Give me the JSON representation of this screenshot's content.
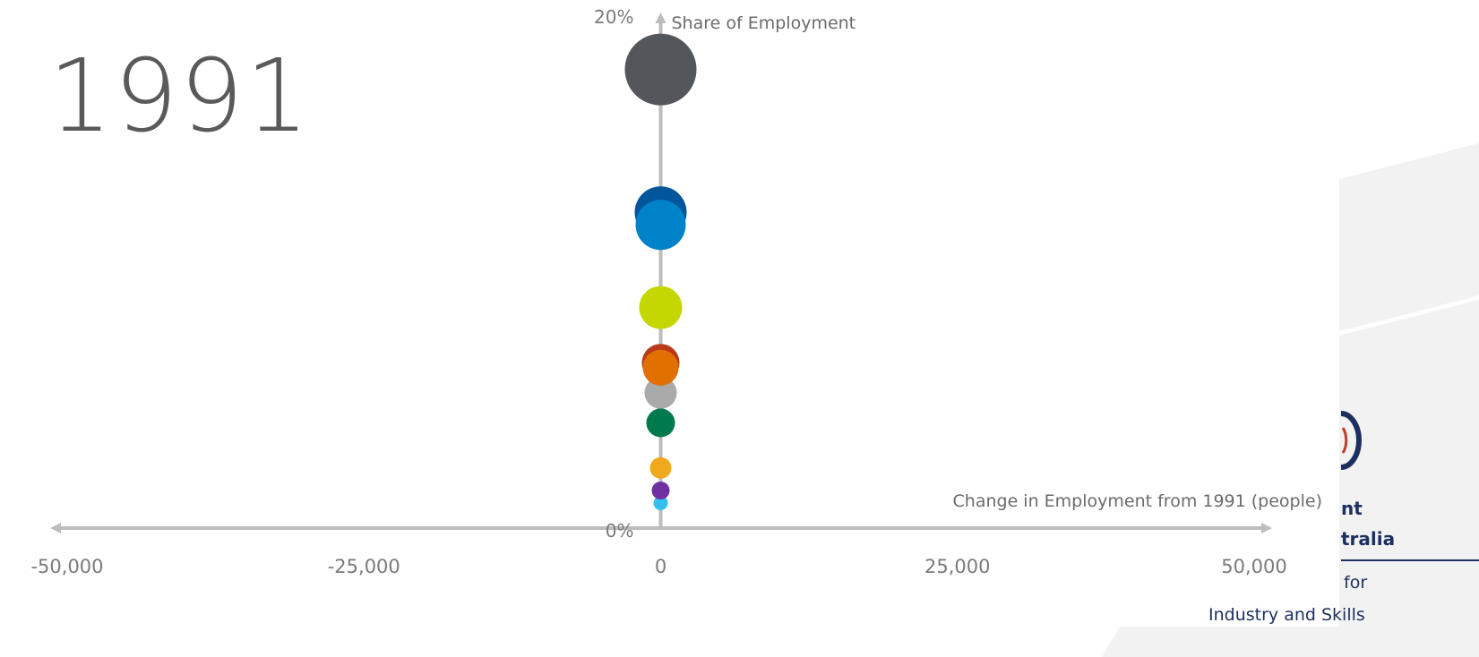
{
  "year_label": "1991",
  "chart_data": {
    "type": "scatter",
    "subtype": "bubble",
    "x_axis_label": "Change in Employment from 1991 (people)",
    "y_axis_label": "Share of Employment",
    "xlim": [
      -50000,
      50000
    ],
    "ylim": [
      0,
      20
    ],
    "x_tick_labels": [
      "-50,000",
      "-25,000",
      "0",
      "25,000",
      "50,000"
    ],
    "x_ticks": [
      -50000,
      -25000,
      0,
      25000,
      50000
    ],
    "y_tick_labels": [
      "0%",
      "20%"
    ],
    "y_ticks": [
      0,
      20
    ],
    "points": [
      {
        "x": 0,
        "y": 18.3,
        "r": 40,
        "color": "#53565a"
      },
      {
        "x": 0,
        "y": 12.6,
        "r": 29,
        "color": "#00559b"
      },
      {
        "x": 0,
        "y": 12.1,
        "r": 28,
        "color": "#0082c8"
      },
      {
        "x": 0,
        "y": 8.8,
        "r": 24,
        "color": "#c5d700"
      },
      {
        "x": 0,
        "y": 6.6,
        "r": 21,
        "color": "#b83a1b"
      },
      {
        "x": 0,
        "y": 5.4,
        "r": 18,
        "color": "#aaaaaa"
      },
      {
        "x": 0,
        "y": 6.4,
        "r": 20,
        "color": "#e27000"
      },
      {
        "x": 0,
        "y": 4.2,
        "r": 16,
        "color": "#007a4d"
      },
      {
        "x": 0,
        "y": 2.4,
        "r": 12,
        "color": "#f0a81c"
      },
      {
        "x": 0,
        "y": 1.0,
        "r": 8,
        "color": "#33c0f0"
      },
      {
        "x": 0,
        "y": 1.5,
        "r": 10,
        "color": "#7030a0"
      }
    ]
  },
  "logo": {
    "line1": "nt",
    "line2": "tralia",
    "line3": "for",
    "line4": "Industry and Skills"
  }
}
